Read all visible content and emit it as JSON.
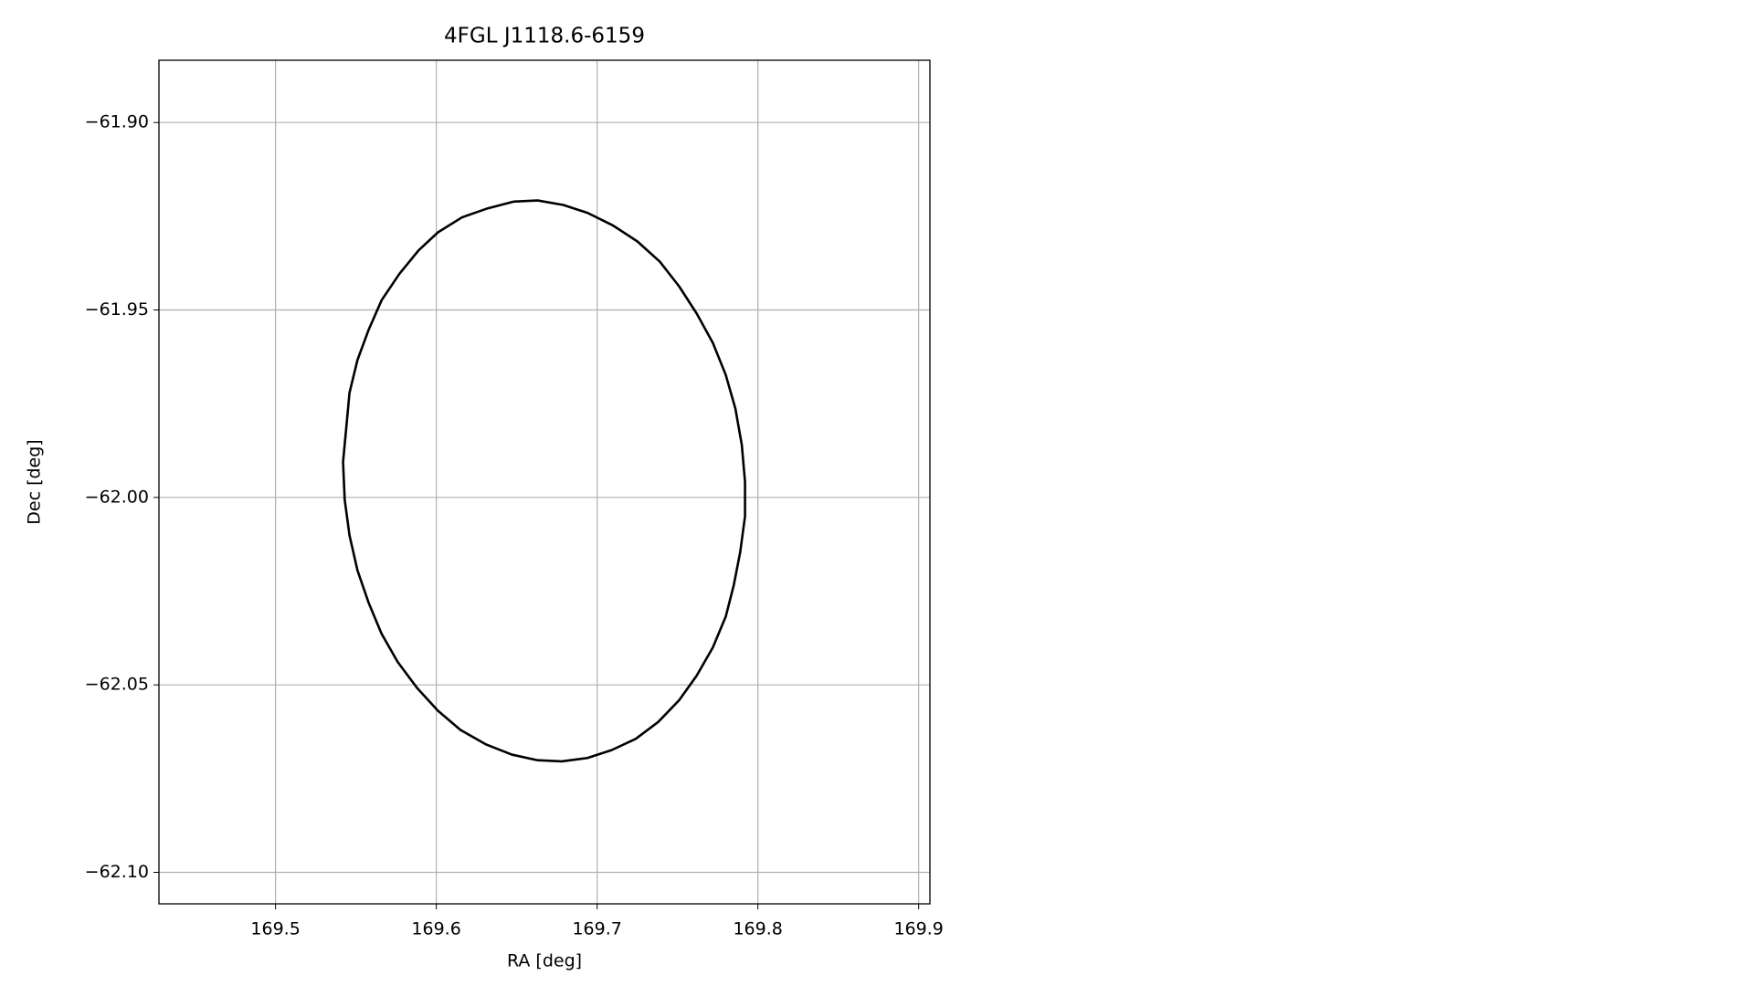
{
  "chart_data": {
    "type": "line",
    "title": "4FGL J1118.6-6159",
    "xlabel": "RA [deg]",
    "ylabel": "Dec [deg]",
    "x": [
      169.648,
      169.663,
      169.679,
      169.694,
      169.71,
      169.725,
      169.739,
      169.751,
      169.762,
      169.772,
      169.78,
      169.786,
      169.79,
      169.792,
      169.792,
      169.789,
      169.785,
      169.78,
      169.772,
      169.762,
      169.751,
      169.738,
      169.724,
      169.709,
      169.694,
      169.678,
      169.663,
      169.647,
      169.631,
      169.615,
      169.601,
      169.588,
      169.576,
      169.566,
      169.558,
      169.551,
      169.546,
      169.543,
      169.542,
      169.544,
      169.546,
      169.551,
      169.558,
      169.566,
      169.577,
      169.589,
      169.601,
      169.616,
      169.632,
      169.648
    ],
    "values": [
      -61.9211,
      -61.9208,
      -61.922,
      -61.9241,
      -61.9275,
      -61.9317,
      -61.9371,
      -61.9437,
      -61.951,
      -61.9588,
      -61.9673,
      -61.9763,
      -61.986,
      -61.9959,
      -62.005,
      -62.0146,
      -62.0234,
      -62.0318,
      -62.04,
      -62.0475,
      -62.0541,
      -62.0599,
      -62.0644,
      -62.0674,
      -62.0695,
      -62.0704,
      -62.0701,
      -62.0686,
      -62.0659,
      -62.062,
      -62.0569,
      -62.0508,
      -62.0439,
      -62.0364,
      -62.0282,
      -62.0195,
      -62.0101,
      -62.0005,
      -61.9905,
      -61.9814,
      -61.9721,
      -61.9633,
      -61.9552,
      -61.9474,
      -61.9404,
      -61.9341,
      -61.9293,
      -61.9253,
      -61.9229,
      -61.9211
    ],
    "color": "#000000",
    "xlim": [
      169.4275,
      169.907
    ],
    "ylim": [
      -62.1084,
      -61.8834
    ],
    "xticks": [
      169.5,
      169.6,
      169.7,
      169.8,
      169.9
    ],
    "yticks": [
      {
        "value": -61.9,
        "label": "−61.90"
      },
      {
        "value": -61.95,
        "label": "−61.95"
      },
      {
        "value": -62.0,
        "label": "−62.00"
      },
      {
        "value": -62.05,
        "label": "−62.05"
      },
      {
        "value": -62.1,
        "label": "−62.10"
      }
    ],
    "grid": true
  }
}
